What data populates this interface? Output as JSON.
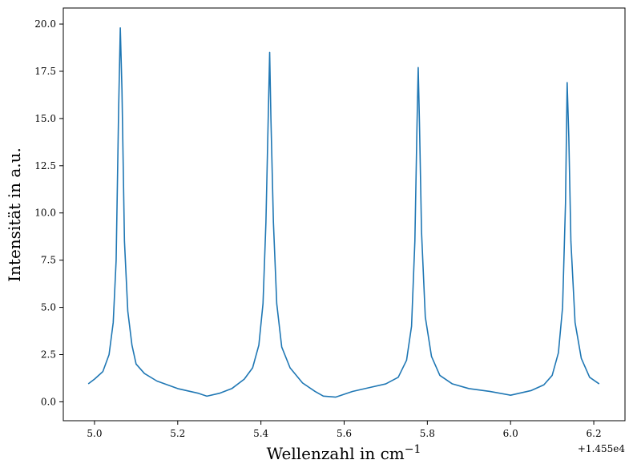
{
  "chart_data": {
    "type": "line",
    "xlabel": "Wellenzahl in cm",
    "xlabel_superscript": "−1",
    "ylabel": "Intensität in a.u.",
    "x_offset_label": "+1.455e4",
    "x_offset": 14550,
    "xlim": [
      4.925,
      6.275
    ],
    "ylim": [
      -1.0,
      20.85
    ],
    "grid": false,
    "legend": "none",
    "line_color": "#1f77b4",
    "x_ticks": [
      5.0,
      5.2,
      5.4,
      5.6,
      5.8,
      6.0,
      6.2
    ],
    "x_tick_labels": [
      "5.0",
      "5.2",
      "5.4",
      "5.6",
      "5.8",
      "6.0",
      "6.2"
    ],
    "y_ticks": [
      0.0,
      2.5,
      5.0,
      7.5,
      10.0,
      12.5,
      15.0,
      17.5,
      20.0
    ],
    "y_tick_labels": [
      "0.0",
      "2.5",
      "5.0",
      "7.5",
      "10.0",
      "12.5",
      "15.0",
      "17.5",
      "20.0"
    ],
    "series": [
      {
        "x": [
          4.985,
          5.0,
          5.02,
          5.035,
          5.045,
          5.052,
          5.058,
          5.062,
          5.066,
          5.072,
          5.08,
          5.09,
          5.1,
          5.12,
          5.15,
          5.2,
          5.25,
          5.27,
          5.3,
          5.33,
          5.36,
          5.38,
          5.395,
          5.405,
          5.412,
          5.418,
          5.421,
          5.424,
          5.43,
          5.438,
          5.45,
          5.47,
          5.5,
          5.53,
          5.55,
          5.58,
          5.62,
          5.66,
          5.7,
          5.73,
          5.75,
          5.762,
          5.77,
          5.775,
          5.778,
          5.781,
          5.786,
          5.795,
          5.81,
          5.83,
          5.86,
          5.9,
          5.95,
          6.0,
          6.05,
          6.08,
          6.1,
          6.115,
          6.125,
          6.132,
          6.136,
          6.14,
          6.145,
          6.155,
          6.17,
          6.19,
          6.213
        ],
        "y": [
          0.95,
          1.2,
          1.6,
          2.5,
          4.2,
          7.5,
          15.5,
          19.8,
          16.5,
          8.5,
          4.8,
          3.0,
          2.0,
          1.5,
          1.1,
          0.7,
          0.45,
          0.3,
          0.45,
          0.7,
          1.2,
          1.8,
          3.0,
          5.2,
          9.5,
          15.5,
          18.5,
          15.0,
          9.5,
          5.2,
          2.9,
          1.8,
          1.0,
          0.55,
          0.3,
          0.25,
          0.55,
          0.75,
          0.95,
          1.3,
          2.2,
          4.0,
          8.5,
          14.5,
          17.7,
          14.8,
          9.0,
          4.5,
          2.4,
          1.4,
          0.95,
          0.7,
          0.55,
          0.35,
          0.6,
          0.9,
          1.4,
          2.6,
          5.0,
          10.5,
          16.9,
          14.0,
          8.5,
          4.2,
          2.3,
          1.3,
          0.95
        ]
      }
    ]
  }
}
